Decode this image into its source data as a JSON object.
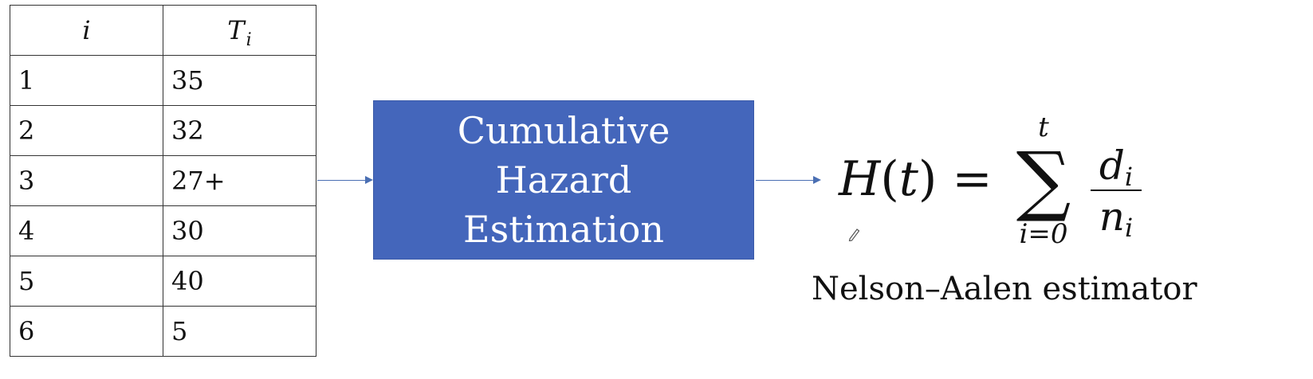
{
  "table": {
    "headers": [
      "i",
      "T",
      "i"
    ],
    "rows": [
      [
        "1",
        "35"
      ],
      [
        "2",
        "32"
      ],
      [
        "3",
        "27+"
      ],
      [
        "4",
        "30"
      ],
      [
        "5",
        "40"
      ],
      [
        "6",
        "5"
      ]
    ]
  },
  "process": {
    "lines": [
      "Cumulative",
      "Hazard",
      "Estimation"
    ]
  },
  "formula": {
    "lhs_func": "H",
    "lhs_open": "(",
    "lhs_var": "t",
    "lhs_close": ")",
    "equals": "=",
    "sum_sign": "∑",
    "sum_upper": "t",
    "sum_lower": "i=0",
    "numerator_var": "d",
    "numerator_sub": "i",
    "denominator_var": "n",
    "denominator_sub": "i"
  },
  "caption": "Nelson–Aalen estimator",
  "colors": {
    "box_fill": "#4466bb",
    "arrow": "#4a6fb3",
    "text": "#111111"
  },
  "icons": [
    "pen-icon"
  ]
}
